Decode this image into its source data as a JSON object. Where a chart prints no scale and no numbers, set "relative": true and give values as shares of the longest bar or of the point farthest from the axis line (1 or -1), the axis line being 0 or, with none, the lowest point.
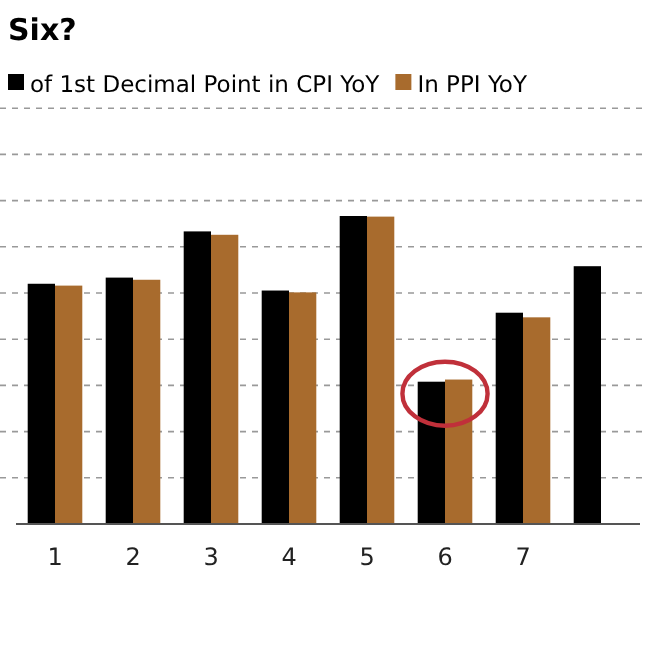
{
  "chart_data": {
    "type": "bar",
    "title": "Six?",
    "relative": true,
    "grid": true,
    "legend": "top",
    "categories": [
      "1",
      "2",
      "3",
      "4",
      "5",
      "6",
      "7",
      null
    ],
    "series": [
      {
        "name": "of 1st Decimal Point in CPI YoY",
        "color": "#000000",
        "values": [
          0.78,
          0.8,
          0.95,
          0.758,
          1,
          0.462,
          0.686,
          0.837
        ]
      },
      {
        "name": "In PPI YoY",
        "color": "#a86b2d",
        "values": [
          0.774,
          0.793,
          0.939,
          0.752,
          0.998,
          0.469,
          0.671,
          null
        ]
      }
    ]
  }
}
